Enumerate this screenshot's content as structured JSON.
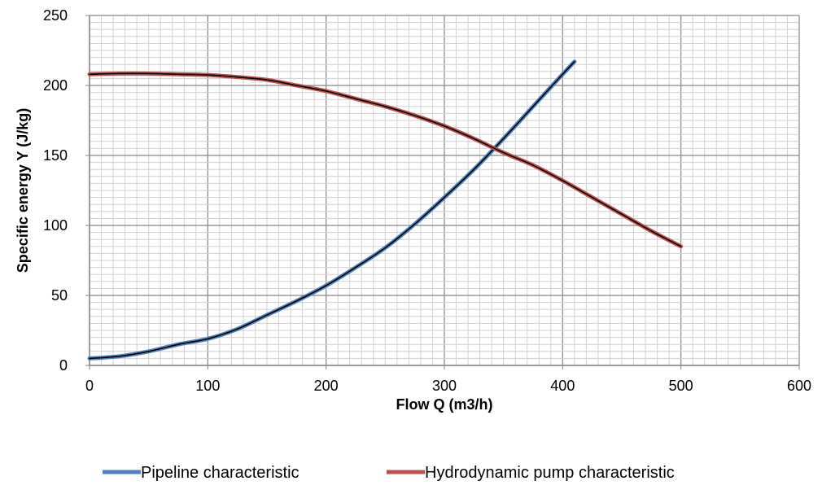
{
  "chart_data": {
    "type": "line",
    "title": "",
    "xlabel": "Flow Q (m3/h)",
    "ylabel": "Specific energy Y (J/kg)",
    "xlim": [
      0,
      600
    ],
    "ylim": [
      0,
      250
    ],
    "x_ticks": [
      "0",
      "100",
      "200",
      "300",
      "400",
      "500",
      "600"
    ],
    "y_ticks": [
      "0",
      "50",
      "100",
      "150",
      "200",
      "250"
    ],
    "grid": true,
    "legend_position": "bottom",
    "series": [
      {
        "name": "Pipeline characteristic",
        "color": "#4F81BD",
        "points": [
          [
            0,
            5
          ],
          [
            25,
            6.5
          ],
          [
            50,
            10
          ],
          [
            75,
            15
          ],
          [
            100,
            19
          ],
          [
            125,
            26
          ],
          [
            150,
            36
          ],
          [
            175,
            46
          ],
          [
            200,
            57
          ],
          [
            225,
            70
          ],
          [
            250,
            84
          ],
          [
            275,
            101
          ],
          [
            300,
            120
          ],
          [
            325,
            140
          ],
          [
            350,
            162
          ],
          [
            375,
            185
          ],
          [
            400,
            208
          ],
          [
            410,
            217
          ]
        ]
      },
      {
        "name": "Hydrodynamic pump characteristic",
        "color": "#C0504D",
        "points": [
          [
            0,
            208
          ],
          [
            25,
            208.5
          ],
          [
            50,
            208.5
          ],
          [
            75,
            208
          ],
          [
            100,
            207.5
          ],
          [
            125,
            206
          ],
          [
            150,
            204
          ],
          [
            175,
            200
          ],
          [
            200,
            196
          ],
          [
            225,
            190.5
          ],
          [
            250,
            185
          ],
          [
            275,
            178.5
          ],
          [
            300,
            171
          ],
          [
            325,
            162
          ],
          [
            350,
            152
          ],
          [
            375,
            143
          ],
          [
            400,
            132
          ],
          [
            425,
            120
          ],
          [
            450,
            108
          ],
          [
            475,
            96
          ],
          [
            500,
            85
          ]
        ]
      }
    ]
  }
}
